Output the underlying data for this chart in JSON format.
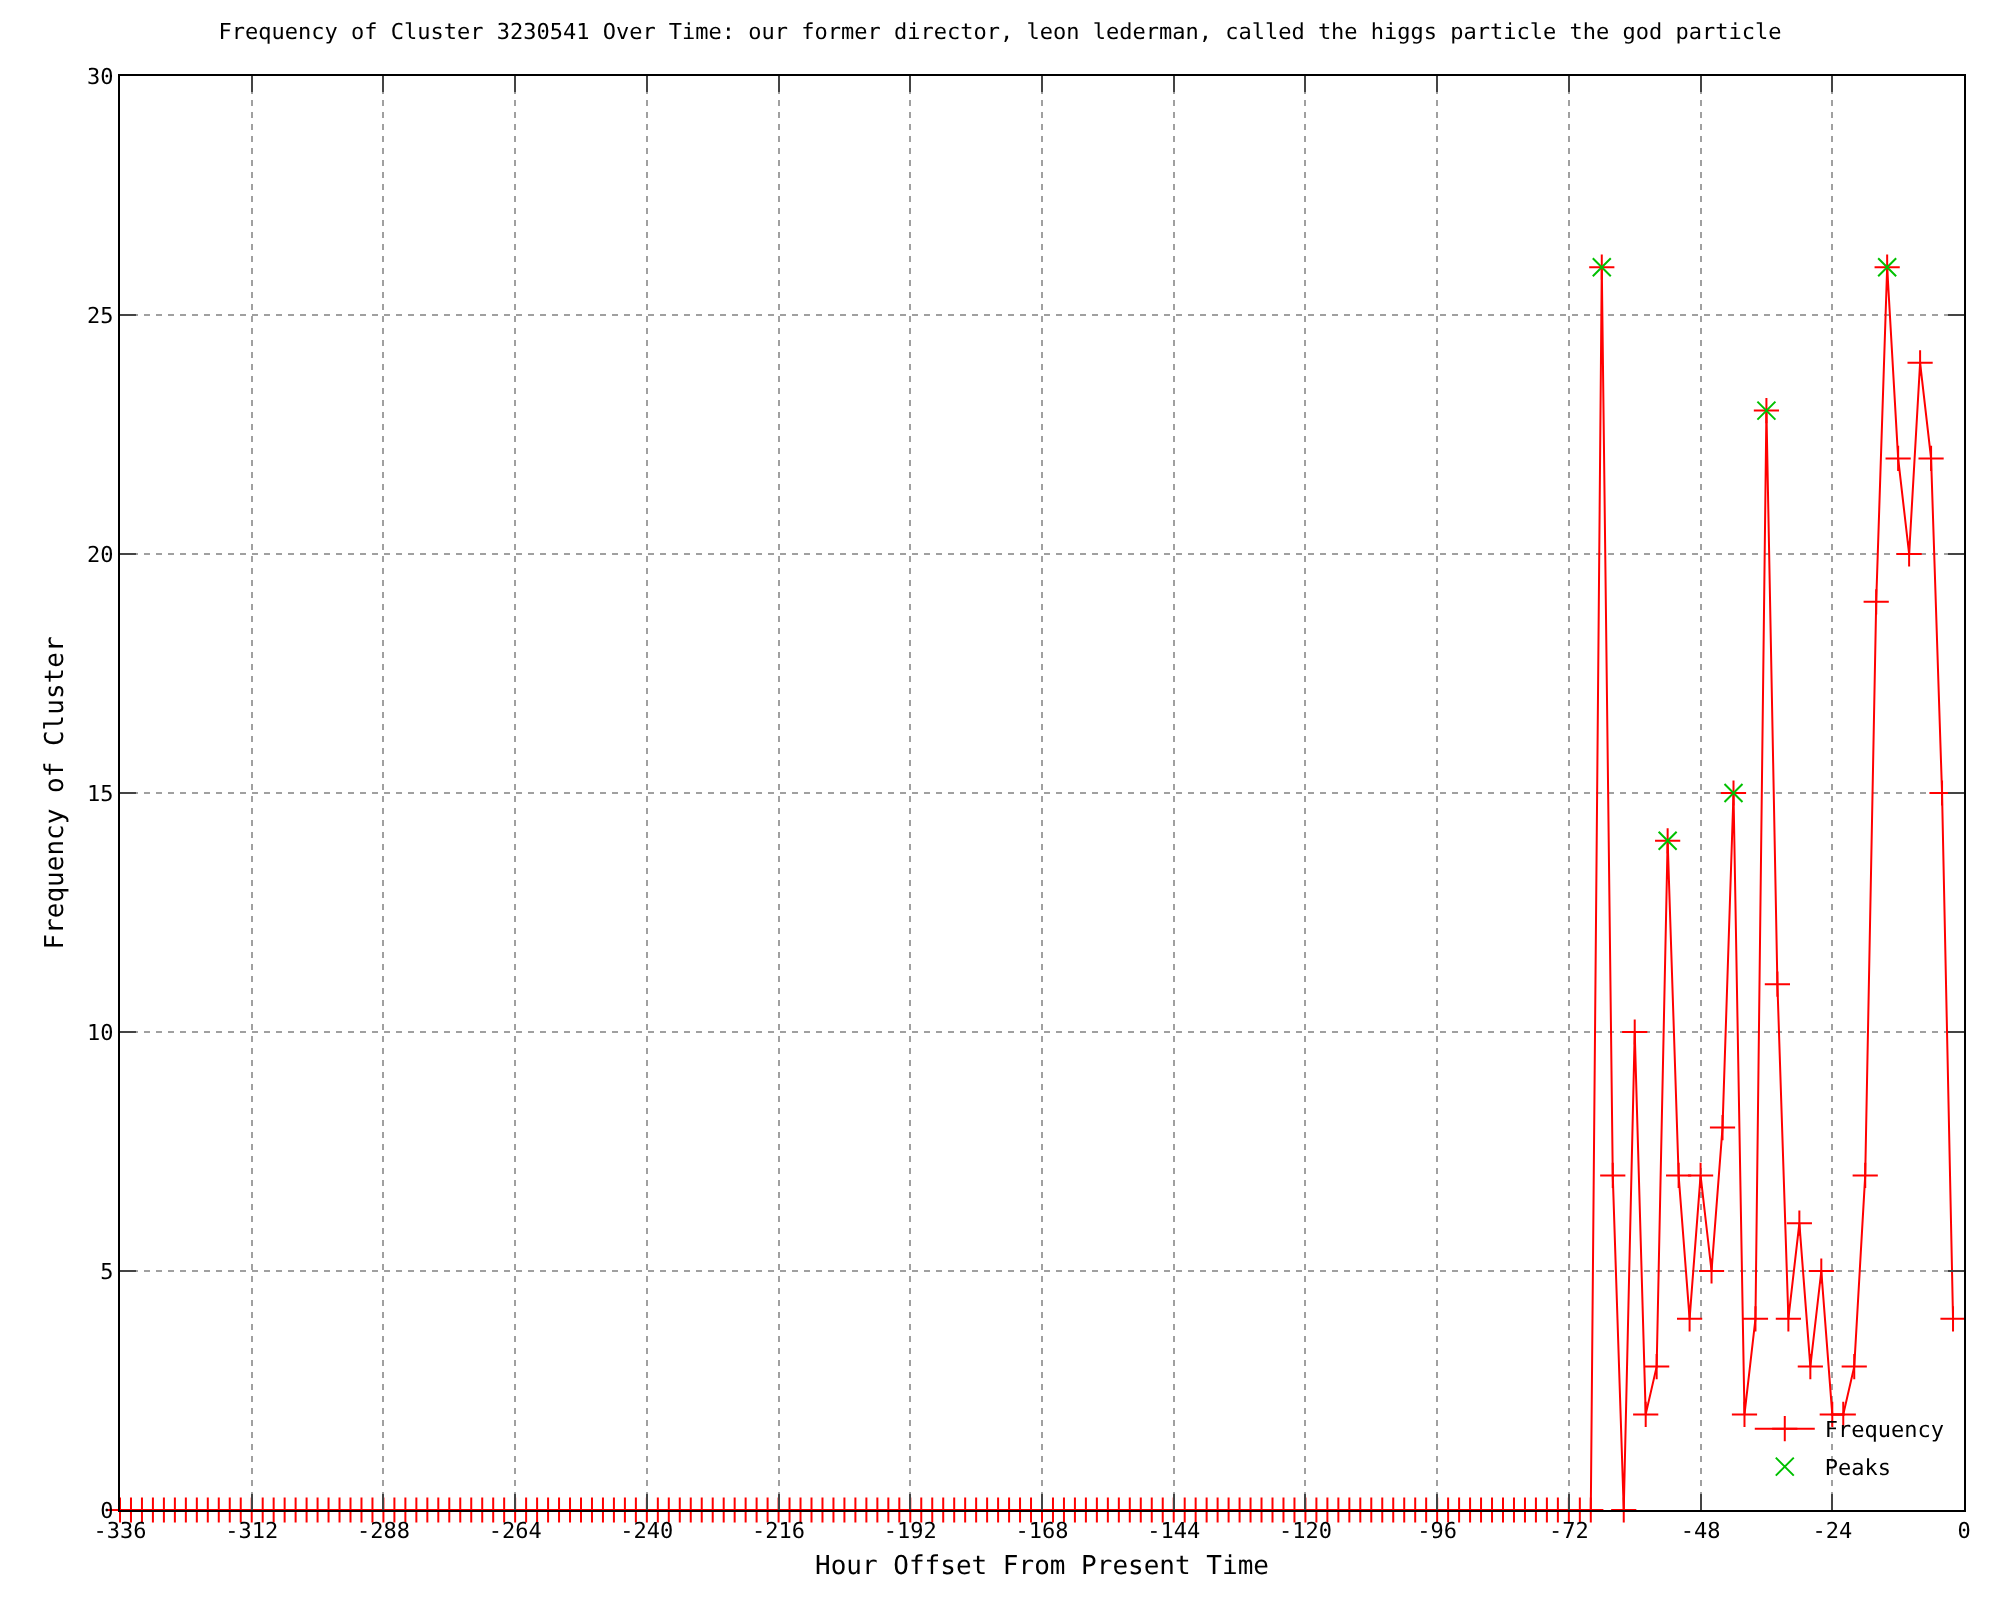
{
  "chart_data": {
    "type": "line",
    "title": "Frequency of Cluster 3230541 Over Time: our former director, leon lederman, called the higgs particle the god particle",
    "xlabel": "Hour Offset From Present Time",
    "ylabel": "Frequency of Cluster",
    "xlim": [
      -336,
      0
    ],
    "xticks": [
      -336,
      -312,
      -288,
      -264,
      -240,
      -216,
      -192,
      -168,
      -144,
      -120,
      -96,
      -72,
      -48,
      -24,
      0
    ],
    "ylim": [
      0,
      30
    ],
    "yticks": [
      0,
      5,
      10,
      15,
      20,
      25,
      30
    ],
    "grid": true,
    "legend": "bottom right",
    "series": [
      {
        "name": "Frequency",
        "color": "#ff0000",
        "marker": "cross",
        "line_style": "solid",
        "x": [
          -336,
          -334,
          -332,
          -330,
          -328,
          -326,
          -324,
          -322,
          -320,
          -318,
          -316,
          -314,
          -312,
          -310,
          -308,
          -306,
          -304,
          -302,
          -300,
          -298,
          -296,
          -294,
          -292,
          -290,
          -288,
          -286,
          -284,
          -282,
          -280,
          -278,
          -276,
          -274,
          -272,
          -270,
          -268,
          -266,
          -264,
          -262,
          -260,
          -258,
          -256,
          -254,
          -252,
          -250,
          -248,
          -246,
          -244,
          -242,
          -240,
          -238,
          -236,
          -234,
          -232,
          -230,
          -228,
          -226,
          -224,
          -222,
          -220,
          -218,
          -216,
          -214,
          -212,
          -210,
          -208,
          -206,
          -204,
          -202,
          -200,
          -198,
          -196,
          -194,
          -192,
          -190,
          -188,
          -186,
          -184,
          -182,
          -180,
          -178,
          -176,
          -174,
          -172,
          -170,
          -168,
          -166,
          -164,
          -162,
          -160,
          -158,
          -156,
          -154,
          -152,
          -150,
          -148,
          -146,
          -144,
          -142,
          -140,
          -138,
          -136,
          -134,
          -132,
          -130,
          -128,
          -126,
          -124,
          -122,
          -120,
          -118,
          -116,
          -114,
          -112,
          -110,
          -108,
          -106,
          -104,
          -102,
          -100,
          -98,
          -96,
          -94,
          -92,
          -90,
          -88,
          -86,
          -84,
          -82,
          -80,
          -78,
          -76,
          -74,
          -72,
          -70,
          -68,
          -66,
          -64,
          -62,
          -60,
          -58,
          -56,
          -54,
          -52,
          -50,
          -48,
          -46,
          -44,
          -42,
          -40,
          -38,
          -36,
          -34,
          -32,
          -30,
          -28,
          -26,
          -24,
          -22,
          -20,
          -18,
          -16,
          -14,
          -12,
          -10,
          -8,
          -6,
          -4,
          -2
        ],
        "values": [
          0,
          0,
          0,
          0,
          0,
          0,
          0,
          0,
          0,
          0,
          0,
          0,
          0,
          0,
          0,
          0,
          0,
          0,
          0,
          0,
          0,
          0,
          0,
          0,
          0,
          0,
          0,
          0,
          0,
          0,
          0,
          0,
          0,
          0,
          0,
          0,
          0,
          0,
          0,
          0,
          0,
          0,
          0,
          0,
          0,
          0,
          0,
          0,
          0,
          0,
          0,
          0,
          0,
          0,
          0,
          0,
          0,
          0,
          0,
          0,
          0,
          0,
          0,
          0,
          0,
          0,
          0,
          0,
          0,
          0,
          0,
          0,
          0,
          0,
          0,
          0,
          0,
          0,
          0,
          0,
          0,
          0,
          0,
          0,
          0,
          0,
          0,
          0,
          0,
          0,
          0,
          0,
          0,
          0,
          0,
          0,
          0,
          0,
          0,
          0,
          0,
          0,
          0,
          0,
          0,
          0,
          0,
          0,
          0,
          0,
          0,
          0,
          0,
          0,
          0,
          0,
          0,
          0,
          0,
          0,
          0,
          0,
          0,
          0,
          0,
          0,
          0,
          0,
          0,
          0,
          0,
          0,
          0,
          0,
          0,
          26,
          7,
          0,
          10,
          2,
          3,
          14,
          7,
          4,
          7,
          5,
          8,
          15,
          2,
          4,
          23,
          11,
          4,
          6,
          3,
          5,
          2,
          2,
          3,
          7,
          19,
          26,
          22,
          20,
          24,
          22,
          15,
          4
        ]
      },
      {
        "name": "Peaks",
        "type": "scatter",
        "color": "#00c000",
        "marker": "cross",
        "x": [
          -66,
          -54,
          -42,
          -36,
          -14
        ],
        "values": [
          26,
          14,
          15,
          23,
          26
        ]
      }
    ]
  }
}
